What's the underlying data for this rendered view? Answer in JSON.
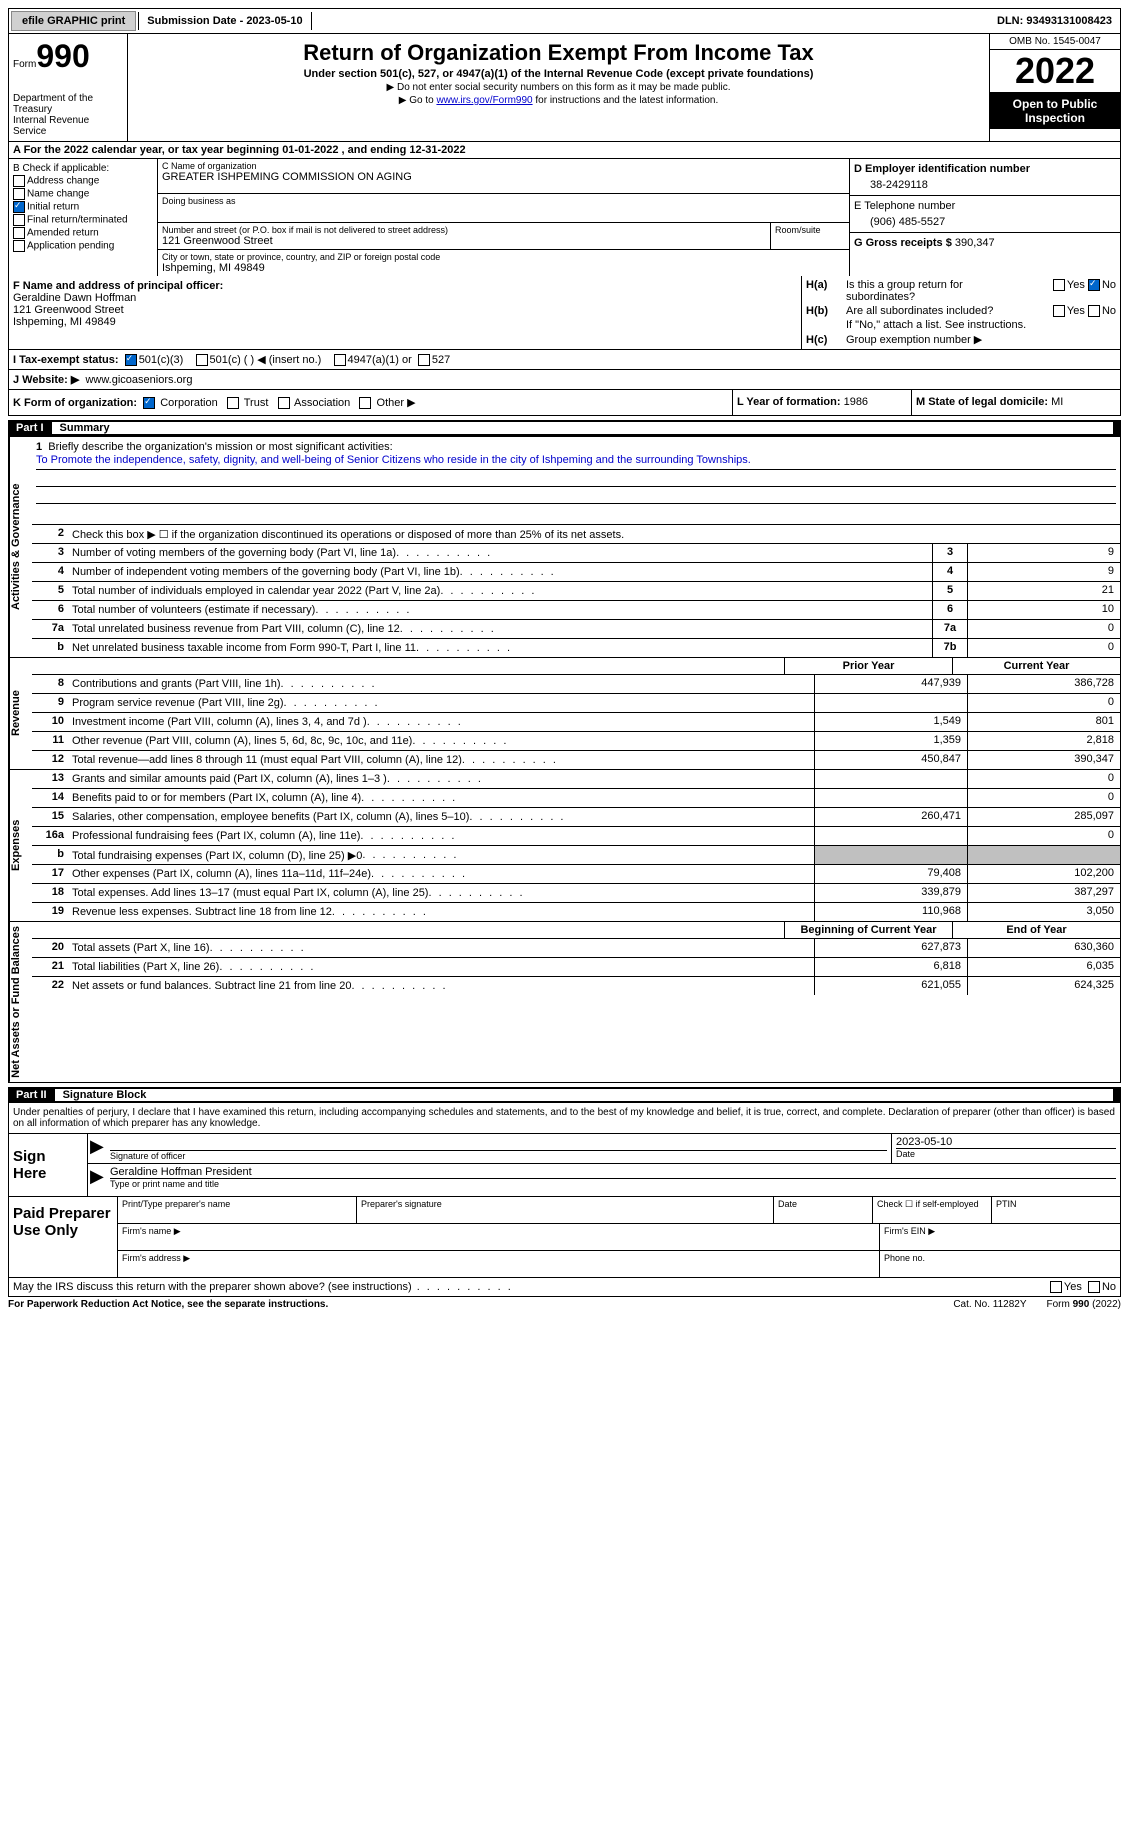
{
  "top": {
    "efile": "efile GRAPHIC print",
    "submission": "Submission Date - 2023-05-10",
    "dln": "DLN: 93493131008423"
  },
  "header": {
    "form_label": "Form",
    "form_number": "990",
    "dept": "Department of the Treasury",
    "irs": "Internal Revenue Service",
    "title": "Return of Organization Exempt From Income Tax",
    "subtitle": "Under section 501(c), 527, or 4947(a)(1) of the Internal Revenue Code (except private foundations)",
    "line1": "▶ Do not enter social security numbers on this form as it may be made public.",
    "line2_pre": "▶ Go to ",
    "line2_link": "www.irs.gov/Form990",
    "line2_post": " for instructions and the latest information.",
    "omb": "OMB No. 1545-0047",
    "year": "2022",
    "open": "Open to Public Inspection"
  },
  "row_a": "A   For the 2022 calendar year, or tax year beginning 01-01-2022    , and ending 12-31-2022",
  "box_b": {
    "label": "B Check if applicable:",
    "items": [
      "Address change",
      "Name change",
      "Initial return",
      "Final return/terminated",
      "Amended return",
      "Application pending"
    ],
    "checked_index": 2
  },
  "box_c": {
    "name_label": "C Name of organization",
    "name": "GREATER ISHPEMING COMMISSION ON AGING",
    "dba_label": "Doing business as",
    "addr_label": "Number and street (or P.O. box if mail is not delivered to street address)",
    "addr": "121 Greenwood Street",
    "room_label": "Room/suite",
    "city_label": "City or town, state or province, country, and ZIP or foreign postal code",
    "city": "Ishpeming, MI  49849"
  },
  "box_d": {
    "label": "D Employer identification number",
    "ein": "38-2429118",
    "e_label": "E Telephone number",
    "phone": "(906) 485-5527",
    "g_label": "G Gross receipts $",
    "gross": "390,347"
  },
  "box_f": {
    "label": "F  Name and address of principal officer:",
    "name": "Geraldine Dawn Hoffman",
    "addr1": "121 Greenwood Street",
    "addr2": "Ishpeming, MI  49849"
  },
  "box_h": {
    "ha": "Is this a group return for subordinates?",
    "hb": "Are all subordinates included?",
    "hb_note": "If \"No,\" attach a list. See instructions.",
    "hc": "Group exemption number ▶"
  },
  "row_i": {
    "label": "I   Tax-exempt status:",
    "opt1": "501(c)(3)",
    "opt2": "501(c) (  ) ◀ (insert no.)",
    "opt3": "4947(a)(1) or",
    "opt4": "527"
  },
  "row_j": {
    "label": "J   Website: ▶",
    "val": "www.gicoaseniors.org"
  },
  "row_k": {
    "label": "K Form of organization:",
    "opts": [
      "Corporation",
      "Trust",
      "Association",
      "Other ▶"
    ]
  },
  "row_l": {
    "label": "L Year of formation:",
    "val": "1986"
  },
  "row_m": {
    "label": "M State of legal domicile:",
    "val": "MI"
  },
  "part1": {
    "num": "Part I",
    "title": "Summary"
  },
  "mission": {
    "q": "Briefly describe the organization's mission or most significant activities:",
    "text": "To Promote the independence, safety, dignity, and well-being of Senior Citizens who reside in the city of Ishpeming and the surrounding Townships."
  },
  "line2": "Check this box ▶ ☐  if the organization discontinued its operations or disposed of more than 25% of its net assets.",
  "sections": {
    "activities": "Activities & Governance",
    "revenue": "Revenue",
    "expenses": "Expenses",
    "netassets": "Net Assets or Fund Balances"
  },
  "gov_rows": [
    {
      "n": "3",
      "t": "Number of voting members of the governing body (Part VI, line 1a)",
      "box": "3",
      "v": "9"
    },
    {
      "n": "4",
      "t": "Number of independent voting members of the governing body (Part VI, line 1b)",
      "box": "4",
      "v": "9"
    },
    {
      "n": "5",
      "t": "Total number of individuals employed in calendar year 2022 (Part V, line 2a)",
      "box": "5",
      "v": "21"
    },
    {
      "n": "6",
      "t": "Total number of volunteers (estimate if necessary)",
      "box": "6",
      "v": "10"
    },
    {
      "n": "7a",
      "t": "Total unrelated business revenue from Part VIII, column (C), line 12",
      "box": "7a",
      "v": "0"
    },
    {
      "n": "b",
      "t": "Net unrelated business taxable income from Form 990-T, Part I, line 11",
      "box": "7b",
      "v": "0"
    }
  ],
  "col_heads": {
    "prior": "Prior Year",
    "current": "Current Year",
    "begin": "Beginning of Current Year",
    "end": "End of Year"
  },
  "rev_rows": [
    {
      "n": "8",
      "t": "Contributions and grants (Part VIII, line 1h)",
      "p": "447,939",
      "c": "386,728"
    },
    {
      "n": "9",
      "t": "Program service revenue (Part VIII, line 2g)",
      "p": "",
      "c": "0"
    },
    {
      "n": "10",
      "t": "Investment income (Part VIII, column (A), lines 3, 4, and 7d )",
      "p": "1,549",
      "c": "801"
    },
    {
      "n": "11",
      "t": "Other revenue (Part VIII, column (A), lines 5, 6d, 8c, 9c, 10c, and 11e)",
      "p": "1,359",
      "c": "2,818"
    },
    {
      "n": "12",
      "t": "Total revenue—add lines 8 through 11 (must equal Part VIII, column (A), line 12)",
      "p": "450,847",
      "c": "390,347"
    }
  ],
  "exp_rows": [
    {
      "n": "13",
      "t": "Grants and similar amounts paid (Part IX, column (A), lines 1–3 )",
      "p": "",
      "c": "0"
    },
    {
      "n": "14",
      "t": "Benefits paid to or for members (Part IX, column (A), line 4)",
      "p": "",
      "c": "0"
    },
    {
      "n": "15",
      "t": "Salaries, other compensation, employee benefits (Part IX, column (A), lines 5–10)",
      "p": "260,471",
      "c": "285,097"
    },
    {
      "n": "16a",
      "t": "Professional fundraising fees (Part IX, column (A), line 11e)",
      "p": "",
      "c": "0"
    },
    {
      "n": "b",
      "t": "Total fundraising expenses (Part IX, column (D), line 25) ▶0",
      "p": "shaded",
      "c": "shaded"
    },
    {
      "n": "17",
      "t": "Other expenses (Part IX, column (A), lines 11a–11d, 11f–24e)",
      "p": "79,408",
      "c": "102,200"
    },
    {
      "n": "18",
      "t": "Total expenses. Add lines 13–17 (must equal Part IX, column (A), line 25)",
      "p": "339,879",
      "c": "387,297"
    },
    {
      "n": "19",
      "t": "Revenue less expenses. Subtract line 18 from line 12",
      "p": "110,968",
      "c": "3,050"
    }
  ],
  "net_rows": [
    {
      "n": "20",
      "t": "Total assets (Part X, line 16)",
      "p": "627,873",
      "c": "630,360"
    },
    {
      "n": "21",
      "t": "Total liabilities (Part X, line 26)",
      "p": "6,818",
      "c": "6,035"
    },
    {
      "n": "22",
      "t": "Net assets or fund balances. Subtract line 21 from line 20",
      "p": "621,055",
      "c": "624,325"
    }
  ],
  "part2": {
    "num": "Part II",
    "title": "Signature Block"
  },
  "sig_intro": "Under penalties of perjury, I declare that I have examined this return, including accompanying schedules and statements, and to the best of my knowledge and belief, it is true, correct, and complete. Declaration of preparer (other than officer) is based on all information of which preparer has any knowledge.",
  "sign": {
    "label": "Sign Here",
    "sig_label": "Signature of officer",
    "date": "2023-05-10",
    "date_label": "Date",
    "name": "Geraldine Hoffman President",
    "name_label": "Type or print name and title"
  },
  "paid": {
    "label": "Paid Preparer Use Only",
    "h1": "Print/Type preparer's name",
    "h2": "Preparer's signature",
    "h3": "Date",
    "h4": "Check ☐ if self-employed",
    "h5": "PTIN",
    "firm_name": "Firm's name    ▶",
    "firm_ein": "Firm's EIN ▶",
    "firm_addr": "Firm's address ▶",
    "phone": "Phone no."
  },
  "may": "May the IRS discuss this return with the preparer shown above? (see instructions)",
  "footer": {
    "l": "For Paperwork Reduction Act Notice, see the separate instructions.",
    "c": "Cat. No. 11282Y",
    "r": "Form 990 (2022)"
  }
}
